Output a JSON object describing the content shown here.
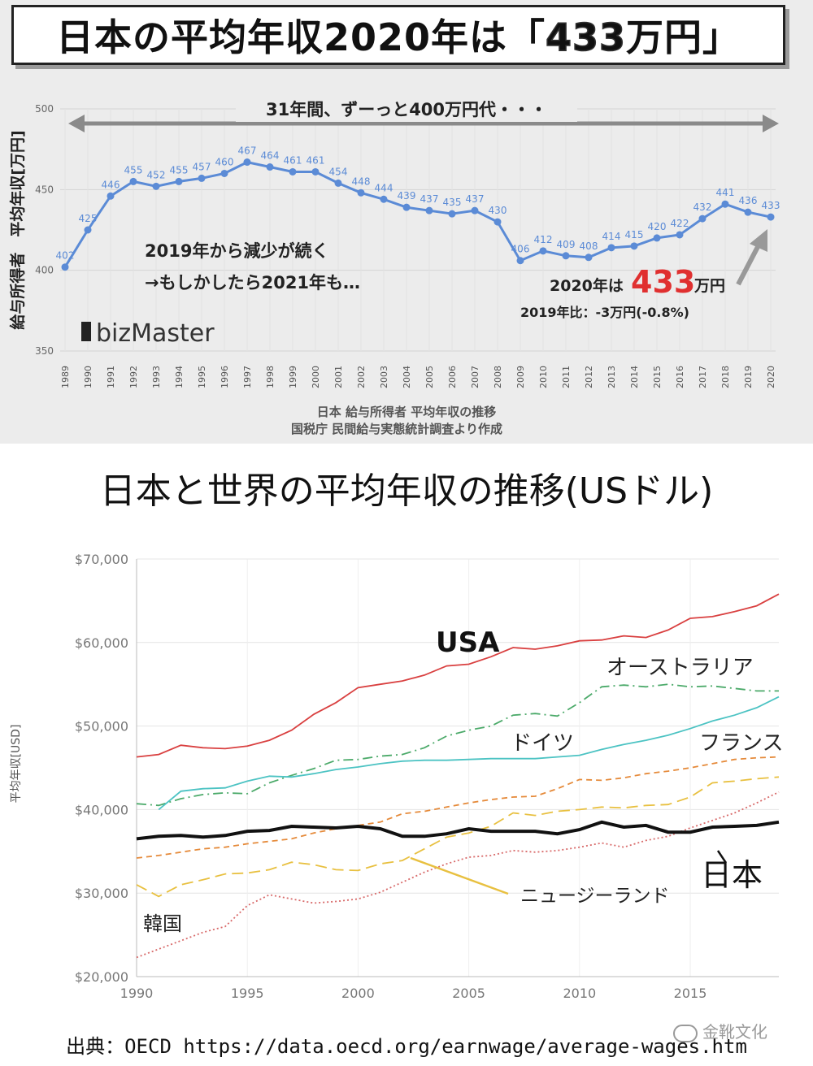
{
  "header": {
    "title_prefix": "日本の平均年収2020年は「",
    "title_highlight": "433",
    "title_suffix": "万円」",
    "highlight_color": "#f2c434"
  },
  "chart_data": [
    {
      "type": "line",
      "id": "japan-avg-income-yen",
      "categories": [
        "1989",
        "1990",
        "1991",
        "1992",
        "1993",
        "1994",
        "1995",
        "1996",
        "1997",
        "1998",
        "1999",
        "2000",
        "2001",
        "2002",
        "2003",
        "2004",
        "2005",
        "2006",
        "2007",
        "2008",
        "2009",
        "2010",
        "2011",
        "2012",
        "2013",
        "2014",
        "2015",
        "2016",
        "2017",
        "2018",
        "2019",
        "2020"
      ],
      "values": [
        402,
        425,
        446,
        455,
        452,
        455,
        457,
        460,
        467,
        464,
        461,
        461,
        454,
        448,
        444,
        439,
        437,
        435,
        437,
        430,
        406,
        412,
        409,
        408,
        414,
        415,
        420,
        422,
        432,
        441,
        436,
        433
      ],
      "ylim": [
        350,
        500
      ],
      "yticks": [
        350,
        400,
        450,
        500
      ],
      "ylabel": "給与所得者　平均年収[万円]",
      "xlabel": "",
      "color": "#5b8bd6",
      "banner": "31年間、ずーっと400万円代・・・",
      "annotation_lines": [
        "2019年から減少が続く",
        "→もしかしたら2021年も…"
      ],
      "callout_prefix": "2020年は",
      "callout_value": "433",
      "callout_unit": "万円",
      "callout_sub": "2019年比：-3万円(-0.8%)",
      "logo": "bizMaster",
      "caption_1": "日本 給与所得者 平均年収の推移",
      "caption_2": "国税庁 民間給与実態統計調査より作成"
    },
    {
      "type": "line",
      "id": "world-avg-wages-usd",
      "title": "日本と世界の平均年収の推移(USドル)",
      "ylabel": "平均年収[USD]",
      "xlabel": "",
      "xlim": [
        1990,
        2019
      ],
      "ylim": [
        20000,
        70000
      ],
      "xticks": [
        1990,
        1995,
        2000,
        2005,
        2010,
        2015
      ],
      "yticks": [
        20000,
        30000,
        40000,
        50000,
        60000,
        70000
      ],
      "ytick_labels": [
        "$20,000",
        "$30,000",
        "$40,000",
        "$50,000",
        "$60,000",
        "$70,000"
      ],
      "x": [
        1990,
        1991,
        1992,
        1993,
        1994,
        1995,
        1996,
        1997,
        1998,
        1999,
        2000,
        2001,
        2002,
        2003,
        2004,
        2005,
        2006,
        2007,
        2008,
        2009,
        2010,
        2011,
        2012,
        2013,
        2014,
        2015,
        2016,
        2017,
        2018,
        2019
      ],
      "series": [
        {
          "name": "USA",
          "color": "#d94040",
          "dash": "solid",
          "values": [
            46300,
            46600,
            47700,
            47400,
            47300,
            47600,
            48300,
            49500,
            51400,
            52800,
            54600,
            55000,
            55400,
            56100,
            57200,
            57400,
            58300,
            59400,
            59200,
            59600,
            60200,
            60300,
            60800,
            60600,
            61500,
            62900,
            63100,
            63700,
            64400,
            65800
          ]
        },
        {
          "name": "オーストラリア",
          "color": "#4caa6a",
          "dash": "dashdot",
          "values": [
            40700,
            40500,
            41300,
            41800,
            42000,
            41900,
            43200,
            44100,
            44900,
            45900,
            46000,
            46400,
            46600,
            47400,
            48800,
            49500,
            50000,
            51300,
            51500,
            51200,
            52800,
            54700,
            54900,
            54700,
            55000,
            54700,
            54800,
            54500,
            54200,
            54200
          ]
        },
        {
          "name": "ドイツ",
          "color": "#4cc3c3",
          "dash": "solid",
          "values": [
            null,
            40000,
            42200,
            42500,
            42600,
            43400,
            44000,
            43900,
            44300,
            44800,
            45100,
            45500,
            45800,
            45900,
            45900,
            46000,
            46100,
            46100,
            46100,
            46300,
            46500,
            47200,
            47800,
            48300,
            48900,
            49700,
            50600,
            51300,
            52200,
            53500
          ]
        },
        {
          "name": "フランス",
          "color": "#e58a3a",
          "dash": "dashed",
          "values": [
            34200,
            34500,
            34900,
            35300,
            35500,
            35900,
            36200,
            36500,
            37200,
            37700,
            38100,
            38500,
            39500,
            39800,
            40300,
            40800,
            41200,
            41500,
            41600,
            42500,
            43600,
            43500,
            43800,
            44300,
            44600,
            45000,
            45500,
            46000,
            46200,
            46300
          ]
        },
        {
          "name": "ニュージーランド",
          "color": "#e8c040",
          "dash": "longdash",
          "values": [
            31000,
            29600,
            31000,
            31600,
            32300,
            32400,
            32800,
            33700,
            33400,
            32800,
            32700,
            33500,
            33900,
            35300,
            36700,
            37200,
            38000,
            39600,
            39300,
            39800,
            40000,
            40300,
            40200,
            40500,
            40600,
            41500,
            43200,
            43400,
            43700,
            43900
          ]
        },
        {
          "name": "韓国",
          "color": "#d86a6a",
          "dash": "dotted",
          "values": [
            22300,
            23300,
            24300,
            25300,
            26000,
            28500,
            29800,
            29300,
            28800,
            29000,
            29300,
            30100,
            31300,
            32500,
            33500,
            34300,
            34500,
            35100,
            34900,
            35100,
            35500,
            36000,
            35500,
            36300,
            36800,
            37800,
            38700,
            39600,
            40800,
            42100
          ]
        },
        {
          "name": "日本",
          "color": "#111111",
          "dash": "solid",
          "values": [
            36500,
            36800,
            36900,
            36700,
            36900,
            37400,
            37500,
            38000,
            37900,
            37800,
            38000,
            37700,
            36800,
            36800,
            37100,
            37700,
            37400,
            37400,
            37400,
            37100,
            37600,
            38500,
            37900,
            38100,
            37300,
            37300,
            37900,
            38000,
            38100,
            38500
          ]
        }
      ]
    }
  ],
  "source": "出典：OECD https://data.oecd.org/earnwage/average-wages.htm",
  "watermark": "金靴文化"
}
